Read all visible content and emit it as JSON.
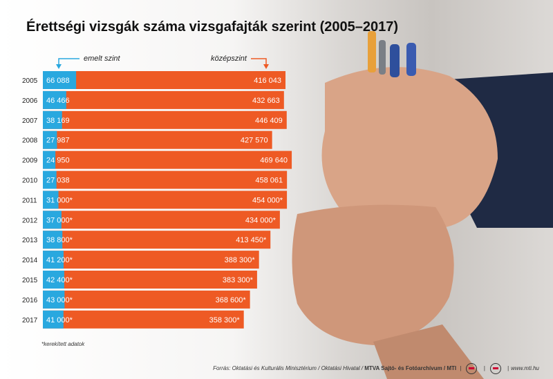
{
  "title": "Érettségi vizsgák száma vizsgafajták szerint (2005–2017)",
  "note": "*kerekített adatok",
  "footer": {
    "source": "Forrás: Oktatási és Kulturális Minisztérium / Oktatási Hivatal / ",
    "agency": "MTVA Sajtó- és Fotóarchívum / MTI",
    "site": "www.mti.hu"
  },
  "colors": {
    "emelt": "#29a8df",
    "kozep": "#ee5a24",
    "text": "#111111"
  },
  "chart_data": {
    "type": "bar",
    "orientation": "horizontal",
    "stacked": true,
    "title": "Érettségi vizsgák száma vizsgafajták szerint (2005–2017)",
    "legend_placement": "top",
    "categories": [
      "2005",
      "2006",
      "2007",
      "2008",
      "2009",
      "2010",
      "2011",
      "2012",
      "2013",
      "2014",
      "2015",
      "2016",
      "2017"
    ],
    "series": [
      {
        "name": "emelt szint",
        "values": [
          66088,
          46466,
          38169,
          27987,
          24950,
          27038,
          31000,
          37000,
          38800,
          41200,
          42400,
          43000,
          41000
        ],
        "labels": [
          "66 088",
          "46 466",
          "38 169",
          "27 987",
          "24 950",
          "27 038",
          "31 000*",
          "37 000*",
          "38 800*",
          "41 200*",
          "42 400*",
          "43 000*",
          "41 000*"
        ]
      },
      {
        "name": "középszint",
        "values": [
          416043,
          432663,
          446409,
          427570,
          469640,
          458061,
          454000,
          434000,
          413450,
          388300,
          383300,
          368600,
          358300
        ],
        "labels": [
          "416 043",
          "432 663",
          "446 409",
          "427 570",
          "469 640",
          "458 061",
          "454 000*",
          "434 000*",
          "413 450*",
          "388 300*",
          "383 300*",
          "368 600*",
          "358 300*"
        ]
      }
    ]
  }
}
